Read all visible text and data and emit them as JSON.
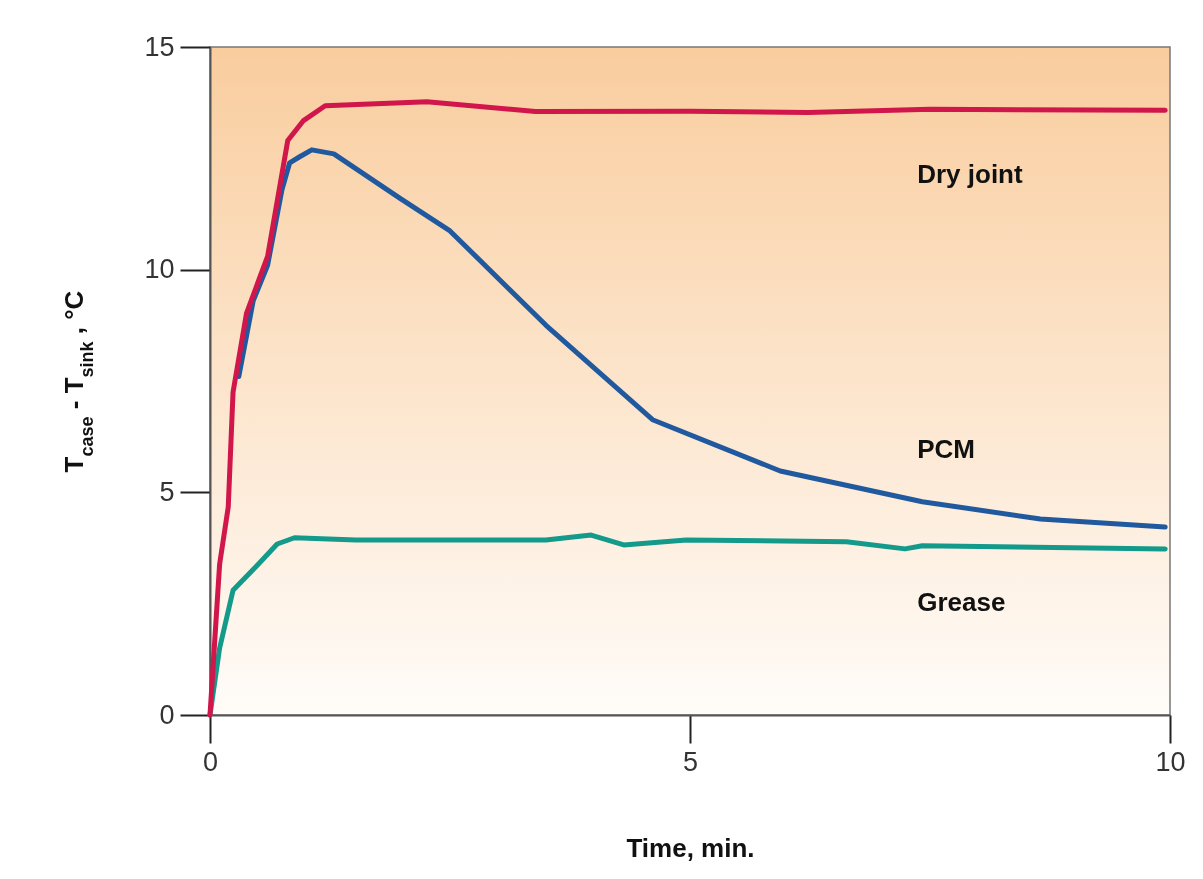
{
  "chart_data": {
    "type": "line",
    "xlabel": "Time, min.",
    "ylabel": "T$_{case}$ - T$_{sink}$ , °C",
    "xlim": [
      0,
      10
    ],
    "ylim": [
      0,
      15
    ],
    "xticks": [
      0,
      5,
      10
    ],
    "yticks": [
      0,
      5,
      10,
      15
    ],
    "line_style": "solid",
    "series": [
      {
        "name": "Dry joint",
        "color": "#d0164a",
        "x": [
          0,
          0.1,
          0.19,
          0.24,
          0.38,
          0.6,
          0.81,
          0.97,
          1.2,
          2.26,
          3.39,
          5.0,
          6.23,
          7.5,
          9.95
        ],
        "values": [
          0,
          3.38,
          4.67,
          7.25,
          9.02,
          10.3,
          12.9,
          13.34,
          13.68,
          13.77,
          13.55,
          13.56,
          13.53,
          13.6,
          13.58
        ]
      },
      {
        "name": "PCM",
        "color": "#21599f",
        "x": [
          0.3,
          0.45,
          0.6,
          0.75,
          0.83,
          0.93,
          1.06,
          1.29,
          1.98,
          2.5,
          3.5,
          4.61,
          5.94,
          7.42,
          8.65,
          9.95
        ],
        "values": [
          7.6,
          9.3,
          10.1,
          11.8,
          12.4,
          12.53,
          12.69,
          12.6,
          11.6,
          10.87,
          8.75,
          6.63,
          5.48,
          4.79,
          4.4,
          4.22
        ]
      },
      {
        "name": "Grease",
        "color": "#139a8a",
        "x": [
          0,
          0.1,
          0.24,
          0.51,
          0.7,
          0.88,
          1.52,
          3.5,
          3.97,
          4.31,
          4.96,
          6.63,
          7.24,
          7.42,
          9.95
        ],
        "values": [
          0,
          1.5,
          2.8,
          3.4,
          3.84,
          3.98,
          3.93,
          3.93,
          4.04,
          3.82,
          3.93,
          3.89,
          3.73,
          3.8,
          3.73
        ]
      }
    ]
  }
}
